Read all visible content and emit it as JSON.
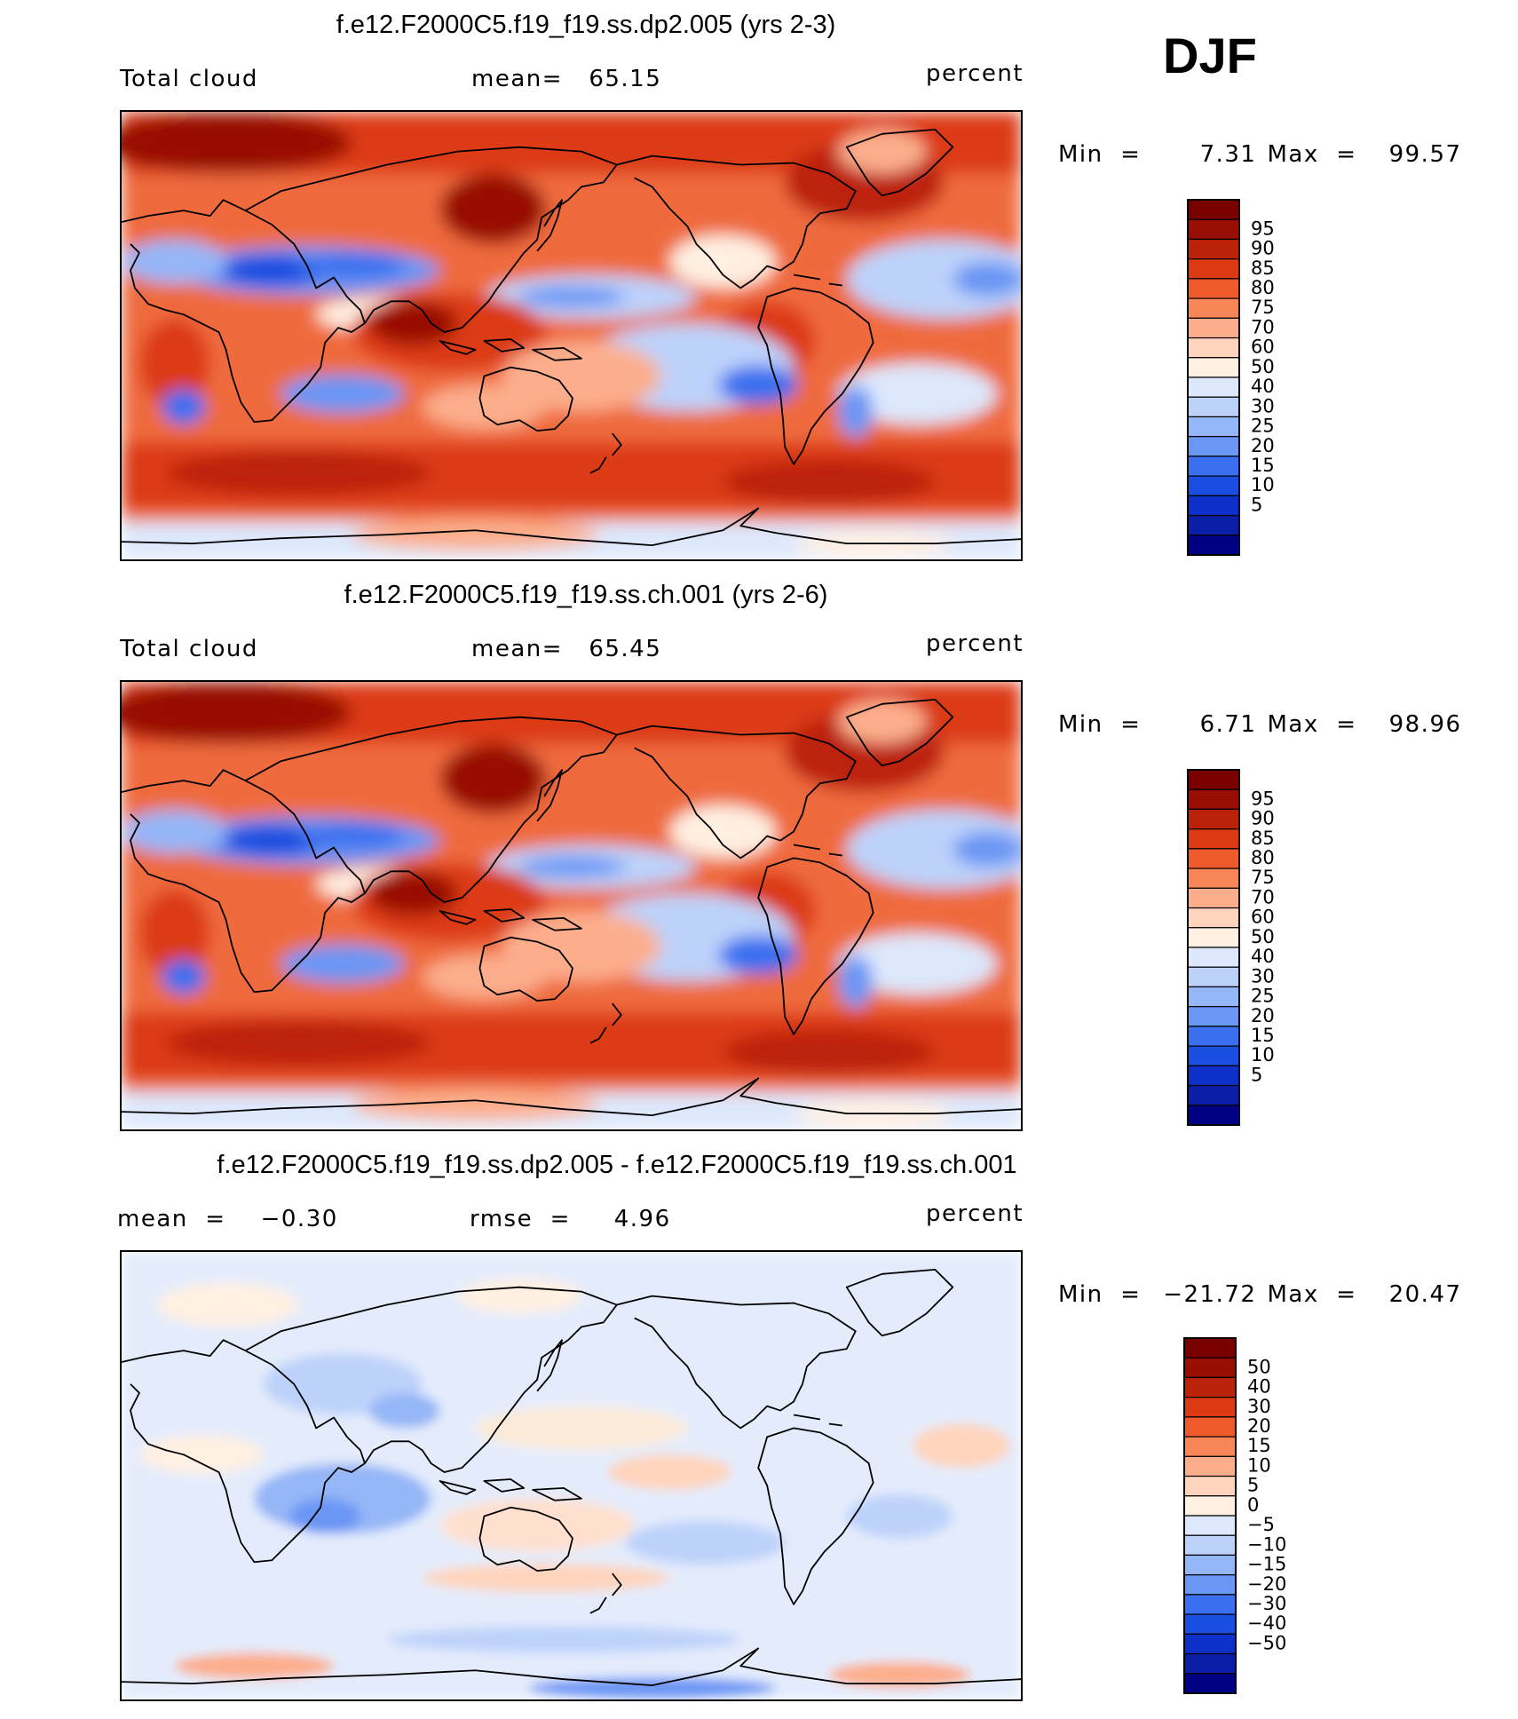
{
  "season": "DJF",
  "palette_abs": [
    "#000082",
    "#0a1ea6",
    "#0c30c8",
    "#1a4ee0",
    "#3a70ef",
    "#6a96f4",
    "#95b6f7",
    "#bdd2fa",
    "#dde8fc",
    "#fff0e2",
    "#ffd4bc",
    "#fcae8c",
    "#f88658",
    "#ef5a2c",
    "#dc3a12",
    "#bc2208",
    "#980e02",
    "#780000"
  ],
  "palette_diff": [
    "#000082",
    "#0a1ea6",
    "#0c30c8",
    "#1a4ee0",
    "#3a70ef",
    "#6a96f4",
    "#95b6f7",
    "#bdd2fa",
    "#dde8fc",
    "#fff0e2",
    "#ffd4bc",
    "#fcae8c",
    "#f88658",
    "#ef5a2c",
    "#dc3a12",
    "#bc2208",
    "#980e02",
    "#780000"
  ],
  "panels": [
    {
      "title": "f.e12.F2000C5.f19_f19.ss.dp2.005 (yrs 2-3)",
      "left_label": "Total cloud",
      "center_label": "mean=   65.15",
      "units": "percent",
      "min_label": "Min  =",
      "min_value": "7.31",
      "max_label": "Max  =",
      "max_value": "99.57",
      "colorbar_labels": [
        "95",
        "90",
        "85",
        "80",
        "75",
        "70",
        "60",
        "50",
        "40",
        "30",
        "25",
        "20",
        "15",
        "10",
        "5"
      ]
    },
    {
      "title": "f.e12.F2000C5.f19_f19.ss.ch.001 (yrs 2-6)",
      "left_label": "Total cloud",
      "center_label": "mean=   65.45",
      "units": "percent",
      "min_label": "Min  =",
      "min_value": "6.71",
      "max_label": "Max  =",
      "max_value": "98.96",
      "colorbar_labels": [
        "95",
        "90",
        "85",
        "80",
        "75",
        "70",
        "60",
        "50",
        "40",
        "30",
        "25",
        "20",
        "15",
        "10",
        "5"
      ]
    },
    {
      "title": "f.e12.F2000C5.f19_f19.ss.dp2.005 - f.e12.F2000C5.f19_f19.ss.ch.001",
      "left_label": "mean  =    −0.30",
      "center_label": "rmse  =     4.96",
      "units": "percent",
      "min_label": "Min  =",
      "min_value": "−21.72",
      "max_label": "Max  =",
      "max_value": "20.47",
      "colorbar_labels": [
        "50",
        "40",
        "30",
        "20",
        "15",
        "10",
        "5",
        "0",
        "−5",
        "−10",
        "−15",
        "−20",
        "−30",
        "−40",
        "−50"
      ]
    }
  ]
}
